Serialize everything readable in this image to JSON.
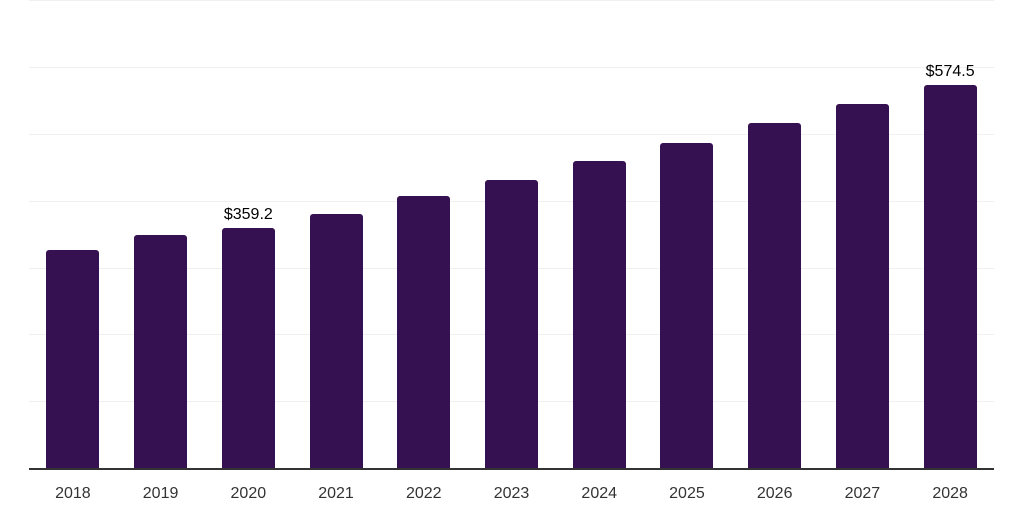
{
  "chart_data": {
    "type": "bar",
    "title": "",
    "xlabel": "",
    "ylabel": "",
    "categories": [
      "2018",
      "2019",
      "2020",
      "2021",
      "2022",
      "2023",
      "2024",
      "2025",
      "2026",
      "2027",
      "2028"
    ],
    "values": [
      326.5,
      349.3,
      359.2,
      381.2,
      407.0,
      432.1,
      460.0,
      487.0,
      516.9,
      545.4,
      574.5
    ],
    "data_labels": [
      "",
      "",
      "$359.2",
      "",
      "",
      "",
      "",
      "",
      "",
      "",
      "$574.5"
    ],
    "ylim": [
      0,
      700
    ],
    "gridline_step": 100,
    "grid": true,
    "legend": false,
    "colors": {
      "bar": "#351151",
      "gridline": "#f0f0f0",
      "axis_line": "#333333",
      "tick_label": "#333333",
      "data_label": "#000000",
      "background": "#ffffff"
    }
  }
}
